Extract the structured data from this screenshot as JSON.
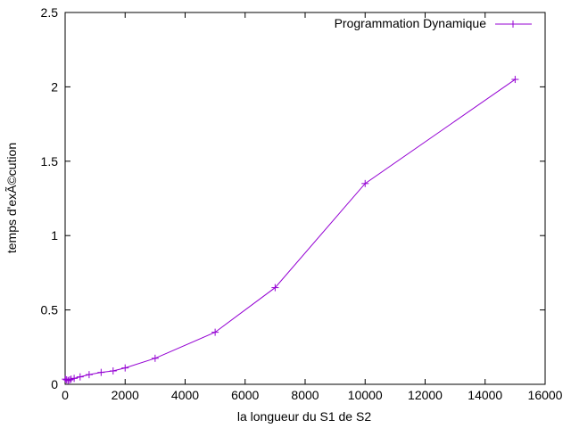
{
  "chart_data": {
    "type": "line",
    "title": "",
    "xlabel": "la longueur du S1 de S2",
    "ylabel": "temps d'exÃ©cution",
    "xlim": [
      0,
      16000
    ],
    "ylim": [
      0,
      2.5
    ],
    "xticks": [
      0,
      2000,
      4000,
      6000,
      8000,
      10000,
      12000,
      14000,
      16000
    ],
    "yticks": [
      0,
      0.5,
      1,
      1.5,
      2,
      2.5
    ],
    "xtick_labels": [
      "0",
      "2000",
      "4000",
      "6000",
      "8000",
      "10000",
      "12000",
      "14000",
      "16000"
    ],
    "ytick_labels": [
      "0",
      "0.5",
      "1",
      "1.5",
      "2",
      "2.5"
    ],
    "grid": false,
    "legend": {
      "placement": "top-right"
    },
    "series": [
      {
        "name": "Programmation Dynamique",
        "color": "#9400d3",
        "marker": "plus",
        "x": [
          10,
          50,
          100,
          150,
          200,
          300,
          500,
          800,
          1200,
          1600,
          2000,
          3000,
          5000,
          7000,
          10000,
          15000
        ],
        "y": [
          0.035,
          0.03,
          0.025,
          0.03,
          0.035,
          0.04,
          0.05,
          0.065,
          0.08,
          0.09,
          0.11,
          0.175,
          0.35,
          0.65,
          1.35,
          2.05
        ]
      }
    ]
  }
}
